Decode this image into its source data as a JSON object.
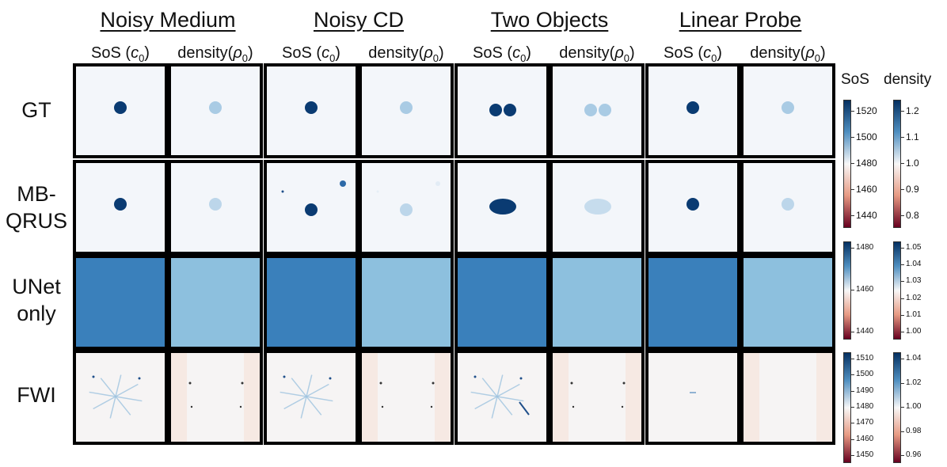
{
  "groups": [
    "Noisy Medium",
    "Noisy CD",
    "Two Objects",
    "Linear Probe"
  ],
  "column_labels": {
    "sos": "SoS (c",
    "density": "density(ρ",
    "subscript": "0",
    "close": ")"
  },
  "rows": [
    "GT",
    "MB-\nQRUS",
    "UNet\nonly",
    "FWI"
  ],
  "colorbar_headers": {
    "sos": "SoS",
    "density": "density"
  },
  "colorbars": [
    {
      "row": "GT / MB-QRUS",
      "sos_ticks": [
        "1520",
        "1500",
        "1480",
        "1460",
        "1440"
      ],
      "density_ticks": [
        "1.2",
        "1.1",
        "1.0",
        "0.9",
        "0.8"
      ]
    },
    {
      "row": "UNet only",
      "sos_ticks": [
        "1480",
        "1460",
        "1440"
      ],
      "density_ticks": [
        "1.05",
        "1.04",
        "1.03",
        "1.02",
        "1.01",
        "1.00"
      ]
    },
    {
      "row": "FWI",
      "sos_ticks": [
        "1510",
        "1500",
        "1490",
        "1480",
        "1470",
        "1460",
        "1450"
      ],
      "density_ticks": [
        "1.04",
        "1.02",
        "1.00",
        "0.98",
        "0.96"
      ]
    }
  ],
  "colors": {
    "low": "#67001f",
    "mid": "#f7f7f7",
    "high": "#053061",
    "unet_sos": "#3a80bb",
    "unet_density": "#8dc0de"
  }
}
